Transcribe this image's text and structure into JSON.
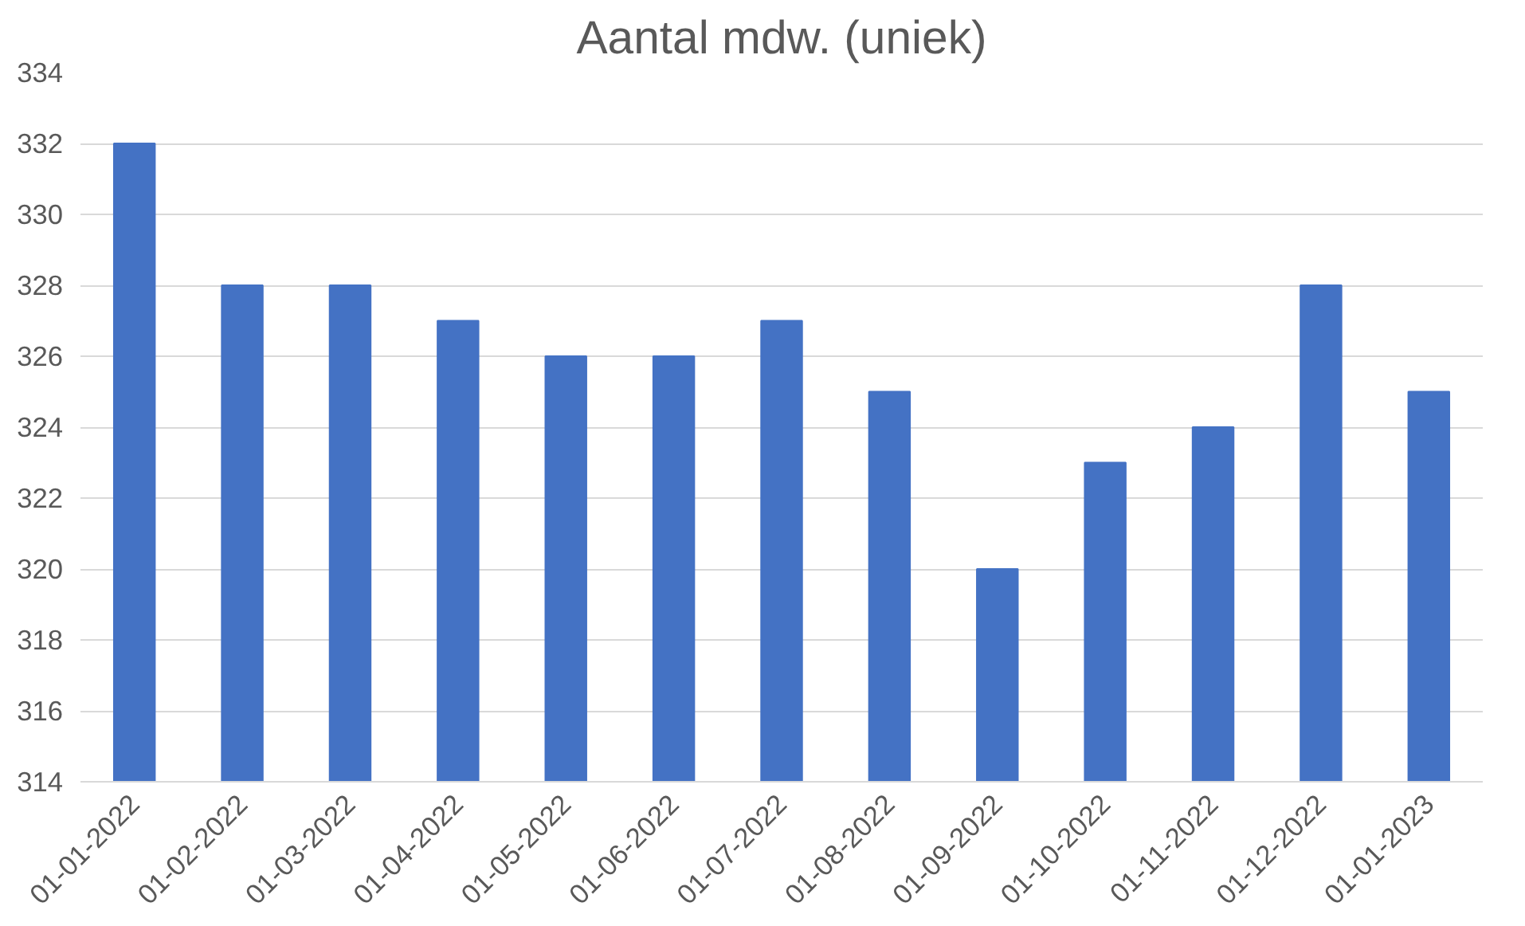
{
  "chart_data": {
    "type": "bar",
    "title": "Aantal mdw. (uniek)",
    "categories": [
      "01-01-2022",
      "01-02-2022",
      "01-03-2022",
      "01-04-2022",
      "01-05-2022",
      "01-06-2022",
      "01-07-2022",
      "01-08-2022",
      "01-09-2022",
      "01-10-2022",
      "01-11-2022",
      "01-12-2022",
      "01-01-2023"
    ],
    "values": [
      332,
      328,
      328,
      327,
      326,
      326,
      327,
      325,
      320,
      323,
      324,
      328,
      325
    ],
    "color": "#4472c4",
    "ylim": [
      314,
      334
    ],
    "yticks": [
      314,
      316,
      318,
      320,
      322,
      324,
      326,
      328,
      330,
      332,
      334
    ],
    "grid": "y"
  }
}
